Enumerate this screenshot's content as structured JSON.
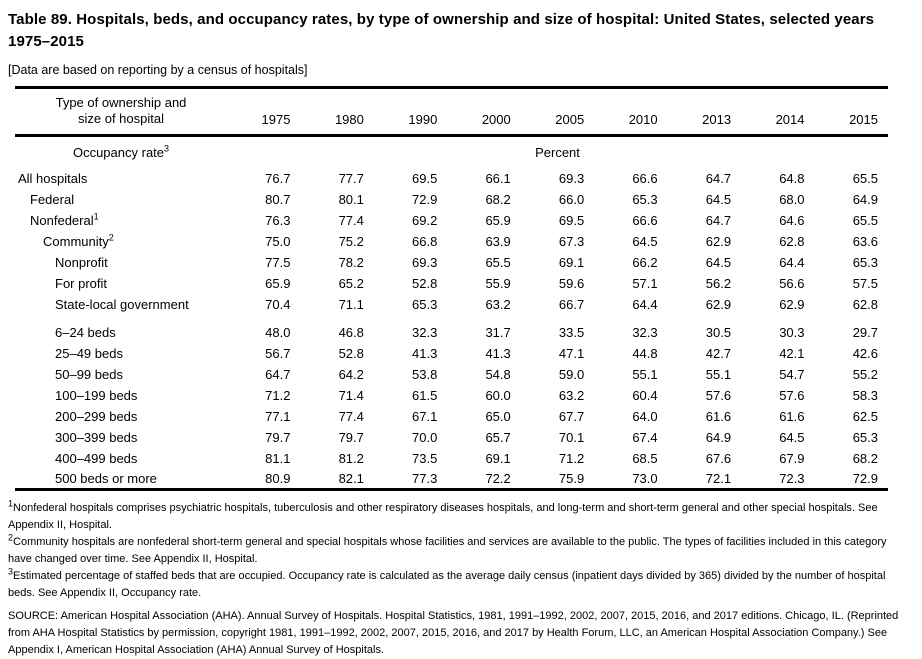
{
  "title": "Table 89. Hospitals, beds, and occupancy rates, by type of ownership and size of hospital: United States, selected years 1975–2015",
  "subtitle": "[Data are based on reporting by a census of hospitals]",
  "table": {
    "stub_header_line1": "Type of ownership and",
    "stub_header_line2": "size of hospital",
    "years": [
      "1975",
      "1980",
      "1990",
      "2000",
      "2005",
      "2010",
      "2013",
      "2014",
      "2015"
    ],
    "section_label": "Occupancy rate",
    "section_label_sup": "3",
    "unit_label": "Percent",
    "rows": [
      {
        "label": "All hospitals",
        "sup": "",
        "indent": 0,
        "gap_before": false,
        "values": [
          "76.7",
          "77.7",
          "69.5",
          "66.1",
          "69.3",
          "66.6",
          "64.7",
          "64.8",
          "65.5"
        ]
      },
      {
        "label": "Federal",
        "sup": "",
        "indent": 1,
        "gap_before": false,
        "values": [
          "80.7",
          "80.1",
          "72.9",
          "68.2",
          "66.0",
          "65.3",
          "64.5",
          "68.0",
          "64.9"
        ]
      },
      {
        "label": "Nonfederal",
        "sup": "1",
        "indent": 1,
        "gap_before": false,
        "values": [
          "76.3",
          "77.4",
          "69.2",
          "65.9",
          "69.5",
          "66.6",
          "64.7",
          "64.6",
          "65.5"
        ]
      },
      {
        "label": "Community",
        "sup": "2",
        "indent": 2,
        "gap_before": false,
        "values": [
          "75.0",
          "75.2",
          "66.8",
          "63.9",
          "67.3",
          "64.5",
          "62.9",
          "62.8",
          "63.6"
        ]
      },
      {
        "label": "Nonprofit",
        "sup": "",
        "indent": 3,
        "gap_before": false,
        "values": [
          "77.5",
          "78.2",
          "69.3",
          "65.5",
          "69.1",
          "66.2",
          "64.5",
          "64.4",
          "65.3"
        ]
      },
      {
        "label": "For profit",
        "sup": "",
        "indent": 3,
        "gap_before": false,
        "values": [
          "65.9",
          "65.2",
          "52.8",
          "55.9",
          "59.6",
          "57.1",
          "56.2",
          "56.6",
          "57.5"
        ]
      },
      {
        "label": "State-local government",
        "sup": "",
        "indent": 3,
        "gap_before": false,
        "values": [
          "70.4",
          "71.1",
          "65.3",
          "63.2",
          "66.7",
          "64.4",
          "62.9",
          "62.9",
          "62.8"
        ]
      },
      {
        "label": "6–24 beds",
        "sup": "",
        "indent": 3,
        "gap_before": true,
        "values": [
          "48.0",
          "46.8",
          "32.3",
          "31.7",
          "33.5",
          "32.3",
          "30.5",
          "30.3",
          "29.7"
        ]
      },
      {
        "label": "25–49 beds",
        "sup": "",
        "indent": 3,
        "gap_before": false,
        "values": [
          "56.7",
          "52.8",
          "41.3",
          "41.3",
          "47.1",
          "44.8",
          "42.7",
          "42.1",
          "42.6"
        ]
      },
      {
        "label": "50–99 beds",
        "sup": "",
        "indent": 3,
        "gap_before": false,
        "values": [
          "64.7",
          "64.2",
          "53.8",
          "54.8",
          "59.0",
          "55.1",
          "55.1",
          "54.7",
          "55.2"
        ]
      },
      {
        "label": "100–199 beds",
        "sup": "",
        "indent": 3,
        "gap_before": false,
        "values": [
          "71.2",
          "71.4",
          "61.5",
          "60.0",
          "63.2",
          "60.4",
          "57.6",
          "57.6",
          "58.3"
        ]
      },
      {
        "label": "200–299 beds",
        "sup": "",
        "indent": 3,
        "gap_before": false,
        "values": [
          "77.1",
          "77.4",
          "67.1",
          "65.0",
          "67.7",
          "64.0",
          "61.6",
          "61.6",
          "62.5"
        ]
      },
      {
        "label": "300–399 beds",
        "sup": "",
        "indent": 3,
        "gap_before": false,
        "values": [
          "79.7",
          "79.7",
          "70.0",
          "65.7",
          "70.1",
          "67.4",
          "64.9",
          "64.5",
          "65.3"
        ]
      },
      {
        "label": "400–499 beds",
        "sup": "",
        "indent": 3,
        "gap_before": false,
        "values": [
          "81.1",
          "81.2",
          "73.5",
          "69.1",
          "71.2",
          "68.5",
          "67.6",
          "67.9",
          "68.2"
        ]
      },
      {
        "label": "500 beds or more",
        "sup": "",
        "indent": 3,
        "gap_before": false,
        "values": [
          "80.9",
          "82.1",
          "77.3",
          "72.2",
          "75.9",
          "73.0",
          "72.1",
          "72.3",
          "72.9"
        ]
      }
    ]
  },
  "footnotes": [
    {
      "sup": "1",
      "text": "Nonfederal hospitals comprises psychiatric hospitals, tuberculosis and other respiratory diseases hospitals, and long-term and short-term general and other special hospitals. See Appendix II, Hospital."
    },
    {
      "sup": "2",
      "text": "Community hospitals are nonfederal short-term general and special hospitals whose facilities and services are available to the public. The types of facilities included in this category have changed over time. See Appendix II, Hospital."
    },
    {
      "sup": "3",
      "text": "Estimated percentage of staffed beds that are occupied. Occupancy rate is calculated as the average daily census (inpatient days divided by 365) divided by the number of hospital beds. See Appendix II, Occupancy rate."
    }
  ],
  "source": "SOURCE: American Hospital Association (AHA). Annual Survey of Hospitals. Hospital Statistics, 1981, 1991–1992, 2002, 2007, 2015, 2016, and 2017 editions. Chicago, IL. (Reprinted from AHA Hospital Statistics by permission, copyright 1981, 1991–1992, 2002, 2007, 2015, 2016, and 2017 by Health Forum, LLC, an American Hospital Association Company.) See Appendix I, American Hospital Association (AHA) Annual Survey of Hospitals.",
  "colors": {
    "text": "#000000",
    "background": "#ffffff",
    "rule": "#000000"
  }
}
